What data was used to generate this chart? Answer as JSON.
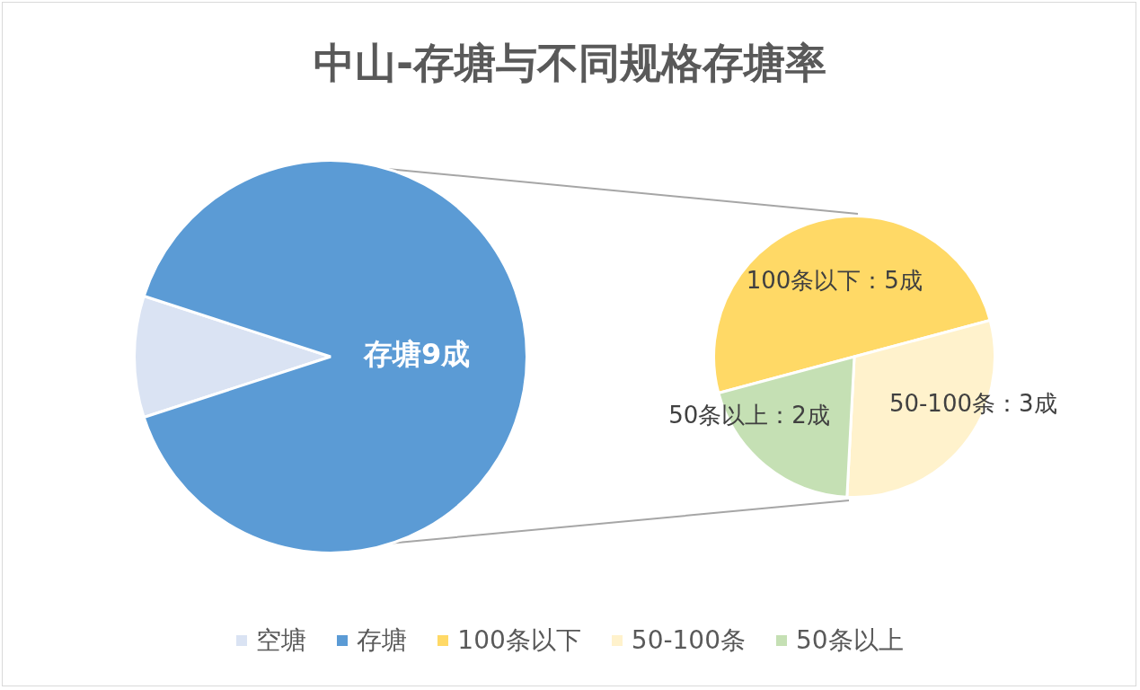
{
  "chart_data": [
    {
      "type": "pie",
      "title": "中山-存塘与不同规格存塘率",
      "categories": [
        "空塘",
        "存塘"
      ],
      "values": [
        1,
        9
      ],
      "colors": [
        "#dae3f3",
        "#5b9bd5"
      ],
      "value_labels": [
        null,
        "存塘9成"
      ],
      "legend": "bottom"
    },
    {
      "type": "pie",
      "categories": [
        "100条以下",
        "50-100条",
        "50条以上"
      ],
      "values": [
        5,
        3,
        2
      ],
      "colors": [
        "#ffd966",
        "#fff2cc",
        "#c5e0b4"
      ],
      "value_labels": [
        "100条以下：5成",
        "50-100条：3成",
        "50条以上：2成"
      ],
      "legend": "bottom"
    }
  ]
}
